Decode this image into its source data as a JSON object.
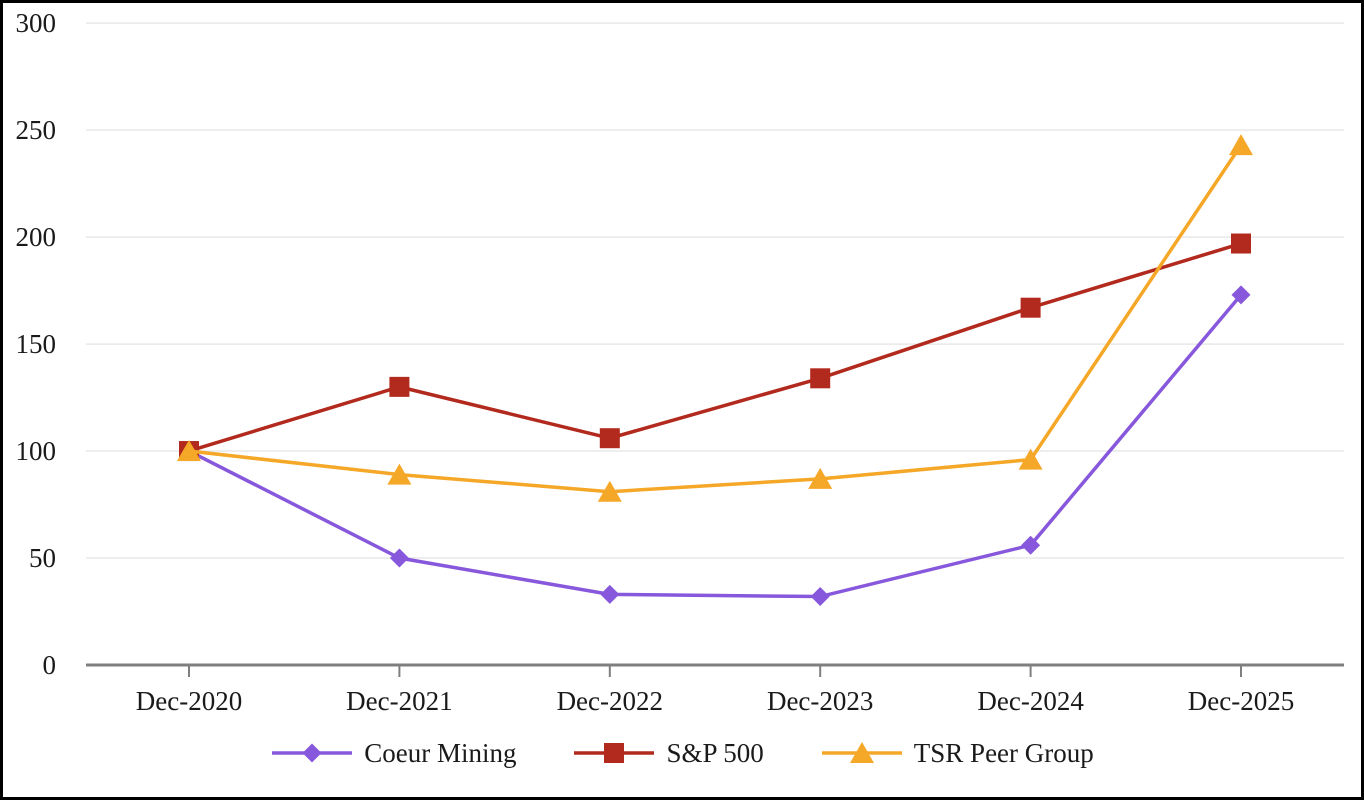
{
  "chart_data": {
    "type": "line",
    "title": "",
    "xlabel": "",
    "ylabel": "",
    "categories": [
      "Dec-2020",
      "Dec-2021",
      "Dec-2022",
      "Dec-2023",
      "Dec-2024",
      "Dec-2025"
    ],
    "series": [
      {
        "name": "Coeur Mining",
        "marker": "diamond",
        "color": "#8758DC",
        "values": [
          100,
          50,
          33,
          32,
          56,
          173
        ]
      },
      {
        "name": "S&P 500",
        "marker": "square",
        "color": "#B2291D",
        "values": [
          100,
          130,
          106,
          134,
          167,
          197
        ]
      },
      {
        "name": "TSR Peer Group",
        "marker": "triangle",
        "color": "#F5A728",
        "values": [
          100,
          89,
          81,
          87,
          96,
          243
        ]
      }
    ],
    "yticks": [
      0,
      50,
      100,
      150,
      200,
      250,
      300
    ],
    "ylim": [
      0,
      300
    ],
    "grid": true,
    "legend_position": "bottom"
  },
  "colors": {
    "grid": "#e8e8e8",
    "axis": "#7f7f7f",
    "text": "#1a1a1a",
    "background": "#ffffff",
    "frame_border": "#000000"
  }
}
